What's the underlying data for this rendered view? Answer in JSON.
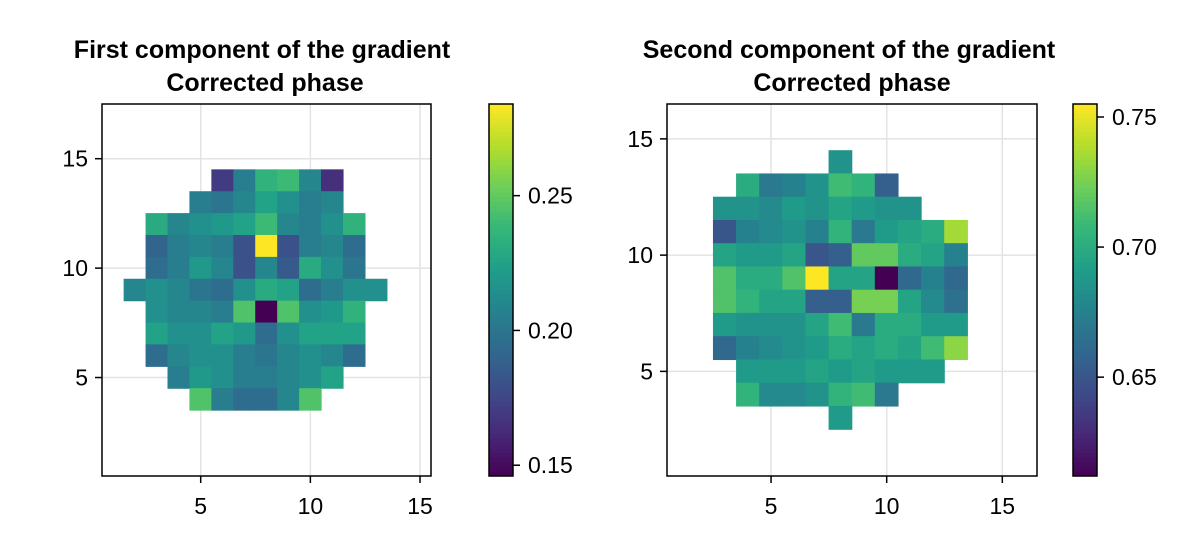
{
  "chart_data": [
    {
      "type": "heatmap",
      "title": "First component of the gradient",
      "subtitle": "Corrected phase",
      "xlim": [
        0.5,
        15.5
      ],
      "ylim": [
        0.5,
        17.5
      ],
      "xticks": [
        5,
        10,
        15
      ],
      "yticks": [
        5,
        10,
        15
      ],
      "grid": true,
      "colormap": "viridis",
      "colorrange": [
        0.146,
        0.284
      ],
      "colorbar_ticks": [
        "0.15",
        "0.20",
        "0.25"
      ],
      "colorbar_tick_values": [
        0.15,
        0.2,
        0.25
      ],
      "y_start": 4,
      "rows_top_to_bottom": [
        [
          6,
          [
            0.17,
            0.205,
            0.235,
            0.24,
            0.21,
            0.165
          ]
        ],
        [
          5,
          [
            0.205,
            0.2,
            0.21,
            0.225,
            0.215,
            0.205,
            0.21
          ]
        ],
        [
          3,
          [
            0.23,
            0.21,
            0.215,
            0.22,
            0.225,
            0.24,
            0.21,
            0.205,
            0.215,
            0.235
          ]
        ],
        [
          3,
          [
            0.19,
            0.205,
            0.21,
            0.205,
            0.18,
            0.284,
            0.18,
            0.205,
            0.21,
            0.195
          ]
        ],
        [
          3,
          [
            0.195,
            0.205,
            0.22,
            0.21,
            0.18,
            0.21,
            0.185,
            0.23,
            0.215,
            0.2
          ]
        ],
        [
          2,
          [
            0.21,
            0.215,
            0.21,
            0.2,
            0.195,
            0.215,
            0.23,
            0.225,
            0.195,
            0.205,
            0.215,
            0.215
          ]
        ],
        [
          3,
          [
            0.215,
            0.21,
            0.21,
            0.205,
            0.245,
            0.146,
            0.245,
            0.215,
            0.22,
            0.235
          ]
        ],
        [
          3,
          [
            0.225,
            0.215,
            0.215,
            0.225,
            0.22,
            0.195,
            0.215,
            0.225,
            0.225,
            0.225
          ]
        ],
        [
          3,
          [
            0.195,
            0.21,
            0.215,
            0.215,
            0.205,
            0.2,
            0.21,
            0.215,
            0.21,
            0.195
          ]
        ],
        [
          4,
          [
            0.205,
            0.22,
            0.215,
            0.205,
            0.205,
            0.21,
            0.215,
            0.225
          ]
        ],
        [
          5,
          [
            0.245,
            0.205,
            0.195,
            0.195,
            0.21,
            0.245
          ]
        ]
      ]
    },
    {
      "type": "heatmap",
      "title": "Second component of the gradient",
      "subtitle": "Corrected phase",
      "xlim": [
        0.5,
        16.5
      ],
      "ylim": [
        0.5,
        16.5
      ],
      "xticks": [
        5,
        10,
        15
      ],
      "yticks": [
        5,
        10,
        15
      ],
      "grid": true,
      "colormap": "viridis",
      "colorrange": [
        0.612,
        0.755
      ],
      "colorbar_ticks": [
        "0.65",
        "0.70",
        "0.75"
      ],
      "colorbar_tick_values": [
        0.65,
        0.7,
        0.75
      ],
      "y_start": 3,
      "rows_top_to_bottom": [
        [
          8,
          [
            0.685
          ]
        ],
        [
          4,
          [
            0.7,
            0.67,
            0.675,
            0.685,
            0.71,
            0.705,
            0.655
          ]
        ],
        [
          3,
          [
            0.685,
            0.685,
            0.68,
            0.69,
            0.685,
            0.695,
            0.69,
            0.685,
            0.685
          ]
        ],
        [
          3,
          [
            0.65,
            0.675,
            0.68,
            0.685,
            0.675,
            0.705,
            0.67,
            0.69,
            0.695,
            0.7,
            0.735
          ]
        ],
        [
          3,
          [
            0.695,
            0.69,
            0.69,
            0.695,
            0.65,
            0.655,
            0.72,
            0.72,
            0.7,
            0.695,
            0.675
          ]
        ],
        [
          3,
          [
            0.715,
            0.7,
            0.7,
            0.715,
            0.755,
            0.695,
            0.695,
            0.612,
            0.66,
            0.675,
            0.66
          ]
        ],
        [
          3,
          [
            0.715,
            0.705,
            0.695,
            0.695,
            0.655,
            0.655,
            0.725,
            0.725,
            0.695,
            0.68,
            0.665
          ]
        ],
        [
          3,
          [
            0.69,
            0.685,
            0.685,
            0.685,
            0.695,
            0.71,
            0.67,
            0.7,
            0.7,
            0.69,
            0.69
          ]
        ],
        [
          3,
          [
            0.66,
            0.675,
            0.68,
            0.685,
            0.69,
            0.7,
            0.695,
            0.7,
            0.695,
            0.71,
            0.73
          ]
        ],
        [
          4,
          [
            0.69,
            0.69,
            0.69,
            0.695,
            0.69,
            0.695,
            0.69,
            0.69,
            0.69
          ]
        ],
        [
          4,
          [
            0.705,
            0.68,
            0.68,
            0.685,
            0.705,
            0.71,
            0.67
          ]
        ],
        [
          8,
          [
            0.69
          ]
        ]
      ]
    }
  ]
}
